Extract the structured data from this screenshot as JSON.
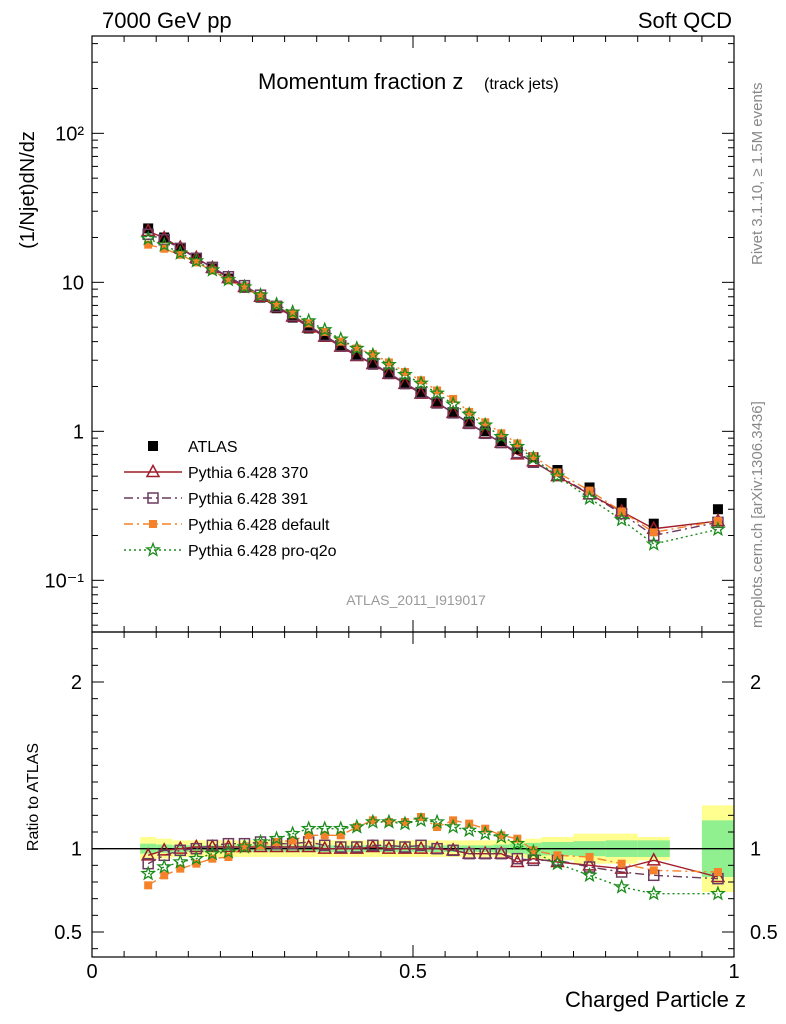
{
  "header": {
    "left": "7000 GeV pp",
    "right": "Soft QCD"
  },
  "side_labels": {
    "rivet": "Rivet 3.1.10, ≥ 1.5M events",
    "mcplots": "mcplots.cern.ch [arXiv:1306.3436]"
  },
  "chart_data": [
    {
      "type": "scatter",
      "title": "Momentum fraction z",
      "title_sub": "(track jets)",
      "analysis_label": "ATLAS_2011_I919017",
      "ylabel": "(1/Njet)dN/dz",
      "yscale": "log",
      "ylim": [
        0.045,
        450
      ],
      "xlim": [
        0,
        1
      ],
      "y_tick_labels": [
        "10⁻¹",
        "1",
        "10",
        "10²"
      ],
      "legend_position": "lower-left",
      "x": [
        0.0875,
        0.1125,
        0.1375,
        0.1625,
        0.1875,
        0.2125,
        0.2375,
        0.2625,
        0.2875,
        0.3125,
        0.3375,
        0.3625,
        0.3875,
        0.4125,
        0.4375,
        0.4625,
        0.4875,
        0.5125,
        0.5375,
        0.5625,
        0.5875,
        0.6125,
        0.6375,
        0.6625,
        0.6875,
        0.725,
        0.775,
        0.825,
        0.875,
        0.975
      ],
      "series": [
        {
          "name": "ATLAS",
          "color": "#000000",
          "marker": "filled-square",
          "line": "none",
          "values": [
            23.0,
            20.0,
            17.0,
            14.5,
            12.4,
            10.6,
            9.2,
            7.9,
            6.7,
            5.8,
            4.9,
            4.3,
            3.7,
            3.2,
            2.8,
            2.42,
            2.07,
            1.79,
            1.55,
            1.34,
            1.16,
            1.0,
            0.86,
            0.76,
            0.67,
            0.55,
            0.42,
            0.33,
            0.24,
            0.3
          ]
        },
        {
          "name": "Pythia 6.428 370",
          "color": "#a01c28",
          "marker": "open-triangle",
          "line": "solid",
          "values": [
            22.1,
            19.8,
            17.1,
            14.6,
            12.5,
            10.7,
            9.3,
            8.0,
            6.8,
            5.9,
            4.98,
            4.32,
            3.7,
            3.2,
            2.83,
            2.43,
            2.08,
            1.79,
            1.56,
            1.33,
            1.13,
            0.97,
            0.84,
            0.7,
            0.63,
            0.5,
            0.378,
            0.29,
            0.222,
            0.25
          ]
        },
        {
          "name": "Pythia 6.428 391",
          "color": "#6b3a5e",
          "marker": "open-square",
          "line": "dashdot",
          "values": [
            21.0,
            19.3,
            16.9,
            14.5,
            12.6,
            10.9,
            9.5,
            8.2,
            6.9,
            6.0,
            5.1,
            4.4,
            3.75,
            3.25,
            2.85,
            2.46,
            2.1,
            1.82,
            1.55,
            1.33,
            1.13,
            0.97,
            0.84,
            0.72,
            0.62,
            0.51,
            0.38,
            0.28,
            0.2,
            0.245
          ]
        },
        {
          "name": "Pythia 6.428 default",
          "color": "#f5822a",
          "marker": "filled-square-small",
          "line": "dashdot",
          "values": [
            17.9,
            16.8,
            15.3,
            13.6,
            12.0,
            10.3,
            9.3,
            8.1,
            7.0,
            6.1,
            5.3,
            4.65,
            4.0,
            3.6,
            3.3,
            2.9,
            2.5,
            2.2,
            1.88,
            1.65,
            1.35,
            1.15,
            0.97,
            0.83,
            0.68,
            0.53,
            0.4,
            0.29,
            0.21,
            0.25
          ]
        },
        {
          "name": "Pythia 6.428 pro-q2o",
          "color": "#1a8c1a",
          "marker": "star",
          "line": "dotted",
          "values": [
            19.6,
            17.8,
            15.7,
            13.9,
            12.1,
            10.4,
            9.3,
            8.2,
            7.1,
            6.3,
            5.5,
            4.8,
            4.15,
            3.6,
            3.25,
            2.8,
            2.4,
            2.1,
            1.8,
            1.52,
            1.3,
            1.1,
            0.92,
            0.79,
            0.66,
            0.5,
            0.355,
            0.255,
            0.175,
            0.22
          ]
        }
      ]
    },
    {
      "type": "scatter",
      "ylabel": "Ratio to ATLAS",
      "xlabel": "Charged Particle z",
      "yscale": "linear",
      "ylim": [
        0.35,
        2.3
      ],
      "xlim": [
        0,
        1
      ],
      "y_ticks": [
        0.5,
        1,
        2
      ],
      "y_tick_labels": [
        "0.5",
        "1",
        "2"
      ],
      "x_ticks": [
        0,
        0.5,
        1
      ],
      "x_tick_labels": [
        "0",
        "0.5",
        "1"
      ],
      "band_edges": [
        0.075,
        0.1,
        0.125,
        0.15,
        0.175,
        0.2,
        0.225,
        0.25,
        0.275,
        0.3,
        0.325,
        0.35,
        0.375,
        0.4,
        0.425,
        0.45,
        0.475,
        0.5,
        0.525,
        0.55,
        0.575,
        0.6,
        0.625,
        0.65,
        0.675,
        0.7,
        0.75,
        0.8,
        0.85,
        0.9,
        0.95,
        1.0
      ],
      "band_inner": [
        0.03,
        0.025,
        0.02,
        0.02,
        0.02,
        0.02,
        0.02,
        0.02,
        0.02,
        0.02,
        0.02,
        0.02,
        0.02,
        0.02,
        0.02,
        0.02,
        0.02,
        0.02,
        0.02,
        0.02,
        0.02,
        0.02,
        0.025,
        0.03,
        0.035,
        0.04,
        0.045,
        0.05,
        0.05,
        0,
        0.17
      ],
      "band_outer": [
        0.07,
        0.06,
        0.05,
        0.05,
        0.05,
        0.05,
        0.05,
        0.05,
        0.05,
        0.05,
        0.05,
        0.05,
        0.05,
        0.05,
        0.05,
        0.05,
        0.05,
        0.05,
        0.05,
        0.05,
        0.05,
        0.05,
        0.05,
        0.05,
        0.06,
        0.07,
        0.09,
        0.09,
        0.07,
        0,
        0.26
      ],
      "band_colors": {
        "inner": "#90f090",
        "outer": "#ffff90"
      },
      "series": [
        {
          "name": "Pythia 6.428 370",
          "color": "#a01c28",
          "values": [
            0.96,
            0.99,
            1.0,
            1.01,
            1.01,
            1.01,
            1.01,
            1.01,
            1.01,
            1.01,
            1.01,
            1.0,
            1.0,
            1.0,
            1.01,
            1.0,
            1.0,
            1.0,
            1.0,
            0.99,
            0.97,
            0.97,
            0.97,
            0.92,
            0.94,
            0.92,
            0.9,
            0.88,
            0.93,
            0.83
          ]
        },
        {
          "name": "Pythia 6.428 391",
          "color": "#6b3a5e",
          "values": [
            0.91,
            0.96,
            0.99,
            1.0,
            1.02,
            1.03,
            1.03,
            1.04,
            1.03,
            1.03,
            1.04,
            1.02,
            1.01,
            1.01,
            1.02,
            1.02,
            1.01,
            1.02,
            1.0,
            0.99,
            0.97,
            0.97,
            0.97,
            0.94,
            0.93,
            0.93,
            0.89,
            0.86,
            0.84,
            0.82
          ]
        },
        {
          "name": "Pythia 6.428 default",
          "color": "#f5822a",
          "values": [
            0.78,
            0.84,
            0.88,
            0.91,
            0.94,
            0.95,
            1.01,
            1.02,
            1.04,
            1.05,
            1.08,
            1.08,
            1.08,
            1.13,
            1.17,
            1.16,
            1.16,
            1.19,
            1.13,
            1.17,
            1.15,
            1.12,
            1.08,
            1.06,
            0.99,
            0.96,
            0.95,
            0.91,
            0.87,
            0.86
          ]
        },
        {
          "name": "Pythia 6.428 pro-q2o",
          "color": "#1a8c1a",
          "values": [
            0.85,
            0.89,
            0.92,
            0.94,
            0.97,
            0.98,
            1.01,
            1.04,
            1.06,
            1.09,
            1.12,
            1.12,
            1.12,
            1.13,
            1.16,
            1.16,
            1.15,
            1.17,
            1.16,
            1.13,
            1.11,
            1.09,
            1.07,
            1.03,
            0.98,
            0.91,
            0.84,
            0.77,
            0.73,
            0.73
          ]
        }
      ]
    }
  ]
}
